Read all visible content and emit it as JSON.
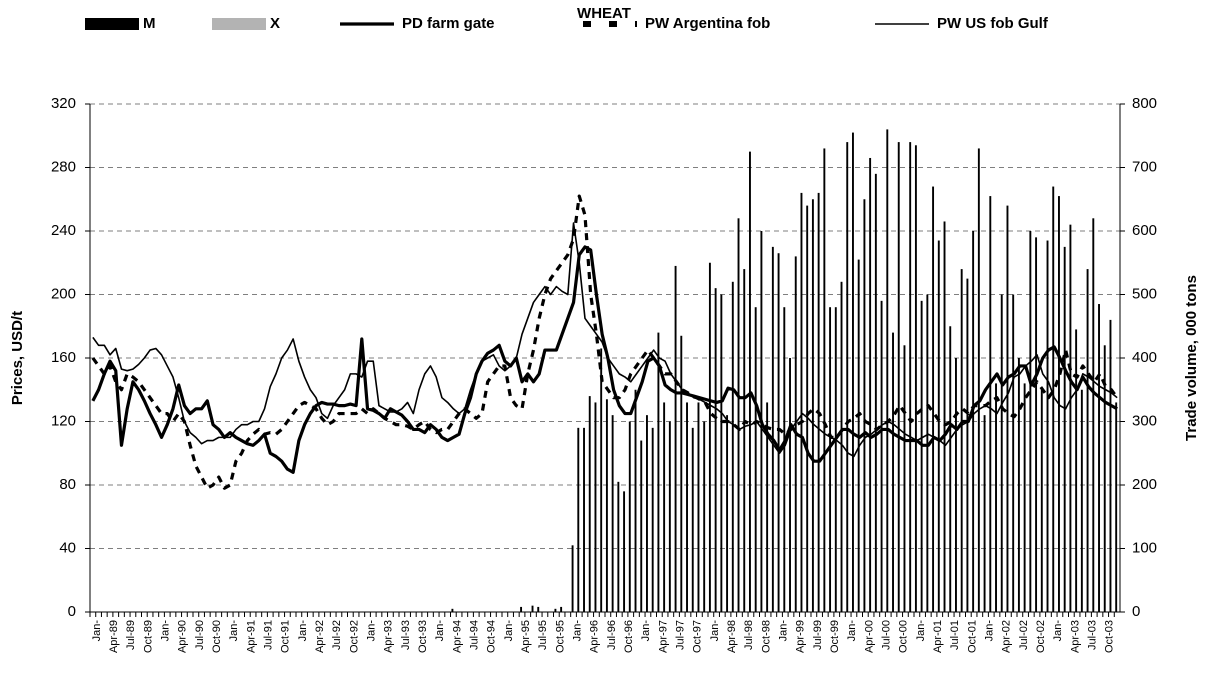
{
  "chart_data": {
    "type": "bar-line",
    "title": "WHEAT",
    "y_label": "Prices, USD/t",
    "y2_label": "Trade volume, 000 tons",
    "ylim": [
      0,
      320
    ],
    "yticks": [
      0,
      40,
      80,
      120,
      160,
      200,
      240,
      280,
      320
    ],
    "y2lim": [
      0,
      800
    ],
    "y2ticks": [
      0,
      100,
      200,
      300,
      400,
      500,
      600,
      700,
      800
    ],
    "grid": true,
    "categories": [
      "Jan-",
      null,
      null,
      "Apr-89",
      null,
      null,
      "Jul-89",
      null,
      null,
      "Oct-89",
      null,
      null,
      "Jan-",
      null,
      null,
      "Apr-90",
      null,
      null,
      "Jul-90",
      null,
      null,
      "Oct-90",
      null,
      null,
      "Jan-",
      null,
      null,
      "Apr-91",
      null,
      null,
      "Jul-91",
      null,
      null,
      "Oct-91",
      null,
      null,
      "Jan-",
      null,
      null,
      "Apr-92",
      null,
      null,
      "Jul-92",
      null,
      null,
      "Oct-92",
      null,
      null,
      "Jan-",
      null,
      null,
      "Apr-93",
      null,
      null,
      "Jul-93",
      null,
      null,
      "Oct-93",
      null,
      null,
      "Jan-",
      null,
      null,
      "Apr-94",
      null,
      null,
      "Jul-94",
      null,
      null,
      "Oct-94",
      null,
      null,
      "Jan-",
      null,
      null,
      "Apr-95",
      null,
      null,
      "Jul-95",
      null,
      null,
      "Oct-95",
      null,
      null,
      "Jan-",
      null,
      null,
      "Apr-96",
      null,
      null,
      "Jul-96",
      null,
      null,
      "Oct-96",
      null,
      null,
      "Jan-",
      null,
      null,
      "Apr-97",
      null,
      null,
      "Jul-97",
      null,
      null,
      "Oct-97",
      null,
      null,
      "Jan-",
      null,
      null,
      "Apr-98",
      null,
      null,
      "Jul-98",
      null,
      null,
      "Oct-98",
      null,
      null,
      "Jan-",
      null,
      null,
      "Apr-99",
      null,
      null,
      "Jul-99",
      null,
      null,
      "Oct-99",
      null,
      null,
      "Jan-",
      null,
      null,
      "Apr-00",
      null,
      null,
      "Jul-00",
      null,
      null,
      "Oct-00",
      null,
      null,
      "Jan-",
      null,
      null,
      "Apr-01",
      null,
      null,
      "Jul-01",
      null,
      null,
      "Oct-01",
      null,
      null,
      "Jan-",
      null,
      null,
      "Apr-02",
      null,
      null,
      "Jul-02",
      null,
      null,
      "Oct-02",
      null,
      null,
      "Jan-",
      null,
      null,
      "Apr-03",
      null,
      null,
      "Jul-03",
      null,
      null,
      "Oct-03",
      null,
      null
    ],
    "series": [
      {
        "name": "M",
        "mark": "bar",
        "axis": "y2",
        "color": "#000000",
        "values": [
          0,
          0,
          0,
          0,
          0,
          0,
          0,
          0,
          0,
          0,
          0,
          0,
          0,
          0,
          0,
          0,
          0,
          0,
          0,
          0,
          0,
          0,
          0,
          0,
          0,
          0,
          0,
          0,
          0,
          0,
          0,
          0,
          0,
          0,
          0,
          0,
          0,
          0,
          0,
          0,
          0,
          0,
          0,
          0,
          0,
          0,
          0,
          0,
          0,
          0,
          0,
          0,
          0,
          0,
          0,
          0,
          0,
          0,
          0,
          0,
          0,
          0,
          0,
          5,
          0,
          0,
          0,
          0,
          0,
          0,
          0,
          0,
          0,
          0,
          0,
          8,
          0,
          10,
          8,
          0,
          0,
          5,
          8,
          0,
          105,
          290,
          290,
          340,
          330,
          415,
          335,
          310,
          205,
          190,
          300,
          350,
          270,
          310,
          290,
          440,
          330,
          300,
          545,
          435,
          330,
          290,
          330,
          300,
          550,
          510,
          500,
          310,
          520,
          620,
          540,
          725,
          480,
          600,
          330,
          575,
          565,
          480,
          400,
          560,
          660,
          640,
          650,
          660,
          730,
          480,
          480,
          520,
          740,
          755,
          555,
          650,
          715,
          690,
          490,
          760,
          440,
          740,
          420,
          740,
          735,
          490,
          500,
          670,
          585,
          615,
          450,
          400,
          540,
          525,
          600,
          730,
          310,
          655,
          360,
          500,
          640,
          500,
          400,
          360,
          600,
          590,
          350,
          585,
          670,
          655,
          575,
          610,
          445,
          350,
          540,
          620,
          485,
          420,
          460,
          330
        ]
      },
      {
        "name": "X",
        "mark": "bar",
        "axis": "y2",
        "color": "#b3b3b3",
        "values": [
          0,
          0,
          0,
          0,
          0,
          0,
          0,
          0,
          0,
          0,
          0,
          0,
          0,
          0,
          0,
          0,
          0,
          0,
          0,
          0,
          0,
          0,
          0,
          0,
          0,
          0,
          0,
          0,
          0,
          0,
          0,
          0,
          0,
          0,
          0,
          0,
          0,
          0,
          0,
          0,
          0,
          0,
          0,
          0,
          0,
          0,
          0,
          0,
          0,
          0,
          0,
          0,
          0,
          0,
          0,
          0,
          0,
          0,
          0,
          0,
          0,
          0,
          0,
          0,
          0,
          0,
          0,
          0,
          0,
          0,
          0,
          0,
          0,
          0,
          0,
          0,
          0,
          0,
          0,
          0,
          0,
          0,
          0,
          0,
          0,
          0,
          0,
          0,
          0,
          0,
          0,
          0,
          0,
          0,
          0,
          0,
          0,
          0,
          0,
          0,
          0,
          0,
          0,
          0,
          0,
          0,
          0,
          0,
          0,
          0,
          0,
          0,
          0,
          0,
          0,
          0,
          0,
          0,
          0,
          0,
          0,
          0,
          0,
          0,
          0,
          0,
          0,
          0,
          0,
          0,
          0,
          0,
          0,
          0,
          0,
          0,
          0,
          0,
          0,
          0,
          0,
          0,
          0,
          0,
          0,
          0,
          0,
          0,
          0,
          0,
          0,
          0,
          0,
          0,
          0,
          0,
          0,
          0,
          0,
          0,
          0,
          0,
          0,
          0,
          0,
          0,
          0,
          0,
          0,
          0,
          0,
          0,
          0,
          0,
          0,
          0,
          0,
          0,
          0,
          0
        ]
      },
      {
        "name": "PD farm gate",
        "mark": "line",
        "linestyle": "thick",
        "color": "#000000",
        "values": [
          133,
          140,
          150,
          158,
          152,
          105,
          128,
          145,
          140,
          133,
          125,
          118,
          110,
          118,
          128,
          143,
          130,
          125,
          128,
          128,
          133,
          118,
          115,
          110,
          113,
          110,
          108,
          106,
          105,
          108,
          112,
          100,
          98,
          95,
          90,
          88,
          108,
          118,
          125,
          130,
          132,
          131,
          131,
          130,
          130,
          131,
          130,
          172,
          128,
          127,
          125,
          122,
          128,
          126,
          124,
          120,
          115,
          115,
          113,
          118,
          115,
          110,
          108,
          110,
          112,
          125,
          135,
          150,
          158,
          163,
          165,
          168,
          158,
          155,
          160,
          145,
          150,
          145,
          150,
          165,
          165,
          165,
          175,
          185,
          195,
          225,
          230,
          228,
          200,
          175,
          160,
          140,
          130,
          125,
          125,
          135,
          145,
          158,
          160,
          155,
          143,
          140,
          138,
          138,
          137,
          136,
          135,
          134,
          133,
          132,
          133,
          141,
          140,
          135,
          135,
          138,
          130,
          118,
          112,
          108,
          102,
          108,
          118,
          112,
          110,
          100,
          95,
          95,
          100,
          105,
          110,
          115,
          115,
          112,
          110,
          113,
          110,
          112,
          115,
          115,
          112,
          110,
          108,
          108,
          108,
          105,
          105,
          110,
          108,
          112,
          118,
          115,
          120,
          120,
          130,
          133,
          140,
          145,
          150,
          143,
          148,
          150,
          155,
          155,
          143,
          150,
          160,
          165,
          167,
          160,
          152,
          145,
          140,
          148,
          142,
          138,
          135,
          132,
          130,
          128
        ]
      },
      {
        "name": "PW Argentina fob",
        "mark": "line",
        "linestyle": "dashed",
        "color": "#000000",
        "values": [
          160,
          155,
          150,
          155,
          145,
          140,
          150,
          148,
          145,
          140,
          135,
          130,
          125,
          125,
          120,
          125,
          120,
          105,
          92,
          85,
          78,
          80,
          85,
          78,
          80,
          95,
          100,
          108,
          112,
          115,
          112,
          113,
          112,
          115,
          120,
          125,
          130,
          132,
          130,
          128,
          122,
          118,
          120,
          125,
          125,
          125,
          125,
          128,
          125,
          128,
          125,
          122,
          120,
          118,
          118,
          117,
          115,
          118,
          120,
          115,
          113,
          115,
          115,
          120,
          125,
          128,
          125,
          122,
          125,
          145,
          150,
          155,
          155,
          135,
          130,
          128,
          150,
          165,
          185,
          200,
          210,
          215,
          220,
          225,
          235,
          262,
          250,
          200,
          175,
          145,
          140,
          135,
          135,
          140,
          150,
          155,
          160,
          165,
          160,
          155,
          150,
          150,
          145,
          140,
          138,
          136,
          134,
          132,
          125,
          122,
          120,
          120,
          118,
          115,
          120,
          118,
          120,
          118,
          116,
          115,
          115,
          112,
          115,
          118,
          120,
          125,
          128,
          125,
          118,
          110,
          110,
          115,
          120,
          122,
          125,
          120,
          118,
          115,
          118,
          120,
          124,
          130,
          125,
          120,
          125,
          128,
          130,
          125,
          120,
          118,
          120,
          125,
          128,
          125,
          130,
          130,
          130,
          133,
          135,
          128,
          125,
          123,
          128,
          135,
          140,
          145,
          140,
          135,
          140,
          150,
          165,
          150,
          148,
          155,
          150,
          145,
          150,
          142,
          140,
          135
        ]
      },
      {
        "name": "PW US fob Gulf",
        "mark": "line",
        "linestyle": "thin",
        "color": "#000000",
        "values": [
          173,
          168,
          168,
          162,
          166,
          153,
          152,
          153,
          156,
          160,
          165,
          166,
          162,
          155,
          148,
          135,
          120,
          113,
          110,
          106,
          108,
          108,
          110,
          110,
          110,
          115,
          118,
          118,
          120,
          120,
          128,
          142,
          150,
          160,
          165,
          172,
          158,
          148,
          140,
          135,
          125,
          122,
          130,
          135,
          140,
          150,
          150,
          148,
          158,
          158,
          130,
          128,
          126,
          126,
          128,
          132,
          125,
          140,
          150,
          155,
          148,
          135,
          132,
          128,
          125,
          128,
          140,
          150,
          158,
          160,
          162,
          155,
          152,
          155,
          160,
          175,
          185,
          195,
          200,
          205,
          200,
          205,
          202,
          200,
          245,
          220,
          185,
          180,
          175,
          170,
          160,
          155,
          150,
          148,
          145,
          150,
          155,
          160,
          165,
          160,
          158,
          150,
          145,
          140,
          138,
          135,
          134,
          132,
          130,
          128,
          125,
          120,
          118,
          115,
          117,
          118,
          120,
          115,
          110,
          105,
          100,
          105,
          115,
          120,
          125,
          122,
          118,
          115,
          112,
          110,
          108,
          105,
          100,
          98,
          105,
          110,
          112,
          115,
          118,
          120,
          118,
          115,
          112,
          110,
          108,
          110,
          112,
          110,
          108,
          105,
          110,
          115,
          118,
          120,
          125,
          128,
          130,
          128,
          125,
          132,
          138,
          148,
          150,
          155,
          158,
          162,
          150,
          145,
          135,
          130,
          128,
          135,
          140,
          150,
          148,
          145,
          142,
          140,
          138,
          135
        ]
      }
    ]
  }
}
